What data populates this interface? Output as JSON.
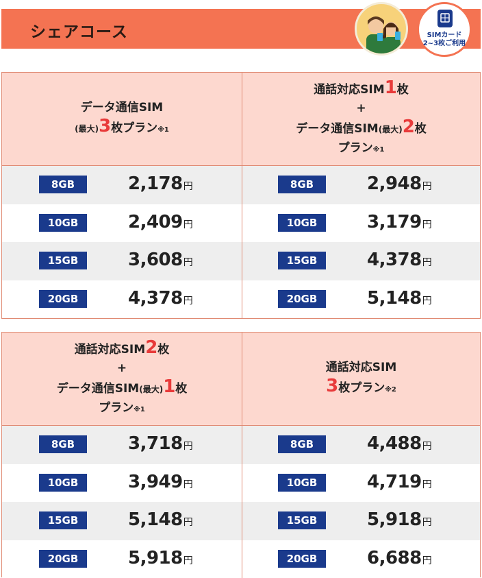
{
  "header": {
    "title": "シェアコース"
  },
  "badge": {
    "line1": "SIMカード",
    "line2": "2~3枚ご利用"
  },
  "currency": "円",
  "colors": {
    "accent": "#f47352",
    "navy": "#1a3a8c",
    "highlight": "#e83a3a",
    "pink": "#fdd8cf"
  },
  "table1": {
    "left": {
      "l1": "データ通信SIM",
      "l2_small": "(最大)",
      "l2_big": "3",
      "l2_text": "枚プラン",
      "l2_note": "※1",
      "rows": [
        {
          "gb": "8GB",
          "price": "2,178"
        },
        {
          "gb": "10GB",
          "price": "2,409"
        },
        {
          "gb": "15GB",
          "price": "3,608"
        },
        {
          "gb": "20GB",
          "price": "4,378"
        }
      ]
    },
    "right": {
      "l1_text": "通話対応SIM",
      "l1_big": "1",
      "l1_suffix": "枚",
      "plus": "+",
      "l3_text": "データ通信SIM",
      "l3_small": "(最大)",
      "l3_big": "2",
      "l3_suffix": "枚",
      "l4_text": "プラン",
      "l4_note": "※1",
      "rows": [
        {
          "gb": "8GB",
          "price": "2,948"
        },
        {
          "gb": "10GB",
          "price": "3,179"
        },
        {
          "gb": "15GB",
          "price": "4,378"
        },
        {
          "gb": "20GB",
          "price": "5,148"
        }
      ]
    }
  },
  "table2": {
    "left": {
      "l1_text": "通話対応SIM",
      "l1_big": "2",
      "l1_suffix": "枚",
      "plus": "+",
      "l3_text": "データ通信SIM",
      "l3_small": "(最大)",
      "l3_big": "1",
      "l3_suffix": "枚",
      "l4_text": "プラン",
      "l4_note": "※1",
      "rows": [
        {
          "gb": "8GB",
          "price": "3,718"
        },
        {
          "gb": "10GB",
          "price": "3,949"
        },
        {
          "gb": "15GB",
          "price": "5,148"
        },
        {
          "gb": "20GB",
          "price": "5,918"
        }
      ]
    },
    "right": {
      "l1": "通話対応SIM",
      "l2_big": "3",
      "l2_text": "枚プラン",
      "l2_note": "※2",
      "rows": [
        {
          "gb": "8GB",
          "price": "4,488"
        },
        {
          "gb": "10GB",
          "price": "4,719"
        },
        {
          "gb": "15GB",
          "price": "5,918"
        },
        {
          "gb": "20GB",
          "price": "6,688"
        }
      ]
    }
  }
}
